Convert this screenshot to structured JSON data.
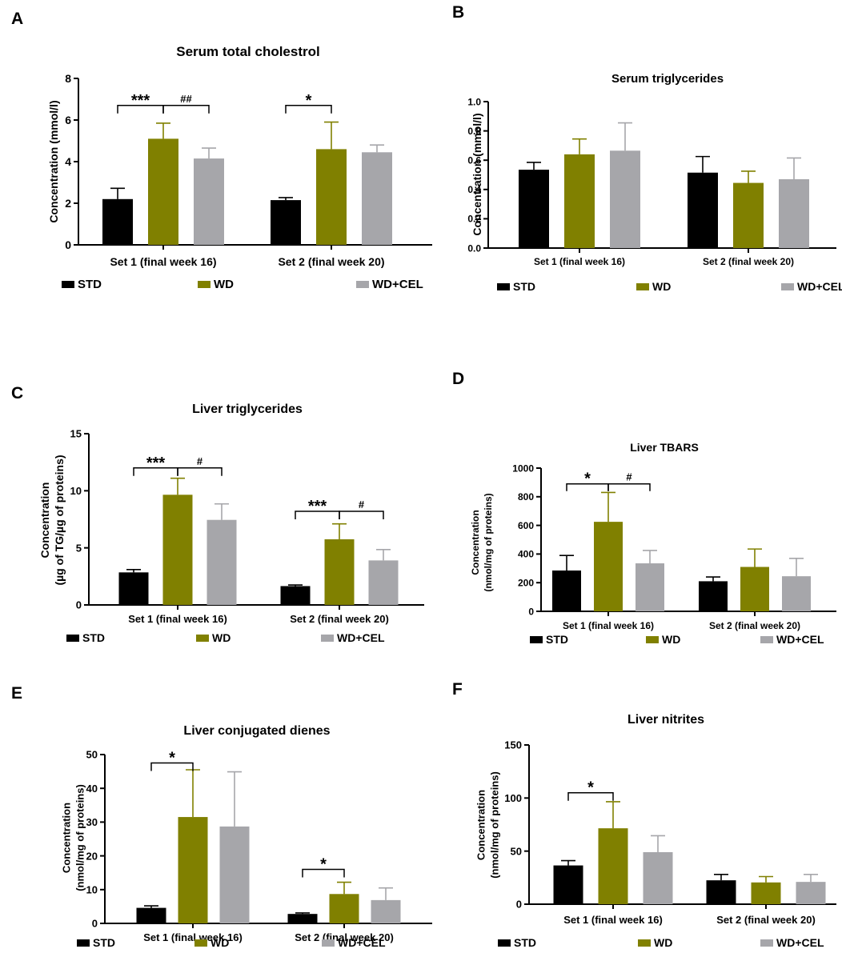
{
  "colors": {
    "STD": "#000000",
    "WD": "#808000",
    "WD+CEL": "#a6a6aa",
    "axis": "#000000"
  },
  "chart_data": [
    {
      "panel": "A",
      "type": "bar",
      "title": "Serum total cholestrol",
      "ylabel": [
        "Concentration (mmol/l)"
      ],
      "ylim": [
        0,
        8
      ],
      "yticks": [
        0,
        2,
        4,
        6,
        8
      ],
      "categories": [
        "Set 1 (final week 16)",
        "Set 2 (final week 20)"
      ],
      "series": [
        {
          "name": "STD",
          "values": [
            2.2,
            2.15
          ],
          "errors": [
            0.52,
            0.12
          ]
        },
        {
          "name": "WD",
          "values": [
            5.1,
            4.6
          ],
          "errors": [
            0.75,
            1.3
          ]
        },
        {
          "name": "WD+CEL",
          "values": [
            4.15,
            4.45
          ],
          "errors": [
            0.5,
            0.35
          ]
        }
      ],
      "annotations": [
        {
          "label": "***",
          "group": 0,
          "from": 0,
          "to": 1,
          "y": 6.7
        },
        {
          "label": "##",
          "group": 0,
          "from": 1,
          "to": 2,
          "y": 6.7
        },
        {
          "label": "*",
          "group": 1,
          "from": 0,
          "to": 1,
          "y": 6.7
        }
      ]
    },
    {
      "panel": "B",
      "type": "bar",
      "title": "Serum triglycerides",
      "ylabel": [
        "Concentration (mmol/l)"
      ],
      "ylim": [
        0,
        1.0
      ],
      "yticks": [
        "0.0",
        "0.2",
        "0.4",
        "0.6",
        "0.8",
        "1.0"
      ],
      "categories": [
        "Set 1 (final week 16)",
        "Set 2 (final week 20)"
      ],
      "series": [
        {
          "name": "STD",
          "values": [
            0.535,
            0.515
          ],
          "errors": [
            0.05,
            0.11
          ]
        },
        {
          "name": "WD",
          "values": [
            0.64,
            0.445
          ],
          "errors": [
            0.105,
            0.08
          ]
        },
        {
          "name": "WD+CEL",
          "values": [
            0.665,
            0.47
          ],
          "errors": [
            0.19,
            0.145
          ]
        }
      ],
      "annotations": []
    },
    {
      "panel": "C",
      "type": "bar",
      "title": "Liver triglycerides",
      "ylabel": [
        "Concentration",
        "(µg of TG/µg of proteins)"
      ],
      "ylim": [
        0,
        15
      ],
      "yticks": [
        0,
        5,
        10,
        15
      ],
      "categories": [
        "Set 1 (final week 16)",
        "Set 2 (final week 20)"
      ],
      "series": [
        {
          "name": "STD",
          "values": [
            2.85,
            1.65
          ],
          "errors": [
            0.25,
            0.1
          ]
        },
        {
          "name": "WD",
          "values": [
            9.65,
            5.75
          ],
          "errors": [
            1.45,
            1.35
          ]
        },
        {
          "name": "WD+CEL",
          "values": [
            7.45,
            3.9
          ],
          "errors": [
            1.4,
            0.95
          ]
        }
      ],
      "annotations": [
        {
          "label": "***",
          "group": 0,
          "from": 0,
          "to": 1,
          "y": 12.0
        },
        {
          "label": "#",
          "group": 0,
          "from": 1,
          "to": 2,
          "y": 12.0
        },
        {
          "label": "***",
          "group": 1,
          "from": 0,
          "to": 1,
          "y": 8.2
        },
        {
          "label": "#",
          "group": 1,
          "from": 1,
          "to": 2,
          "y": 8.2
        }
      ]
    },
    {
      "panel": "D",
      "type": "bar",
      "title": "Liver TBARS",
      "ylabel": [
        "Concentration",
        "(nmol/mg of proteins)"
      ],
      "ylim": [
        0,
        1000
      ],
      "yticks": [
        0,
        200,
        400,
        600,
        800,
        1000
      ],
      "categories": [
        "Set 1 (final week 16)",
        "Set 2 (final week 20)"
      ],
      "series": [
        {
          "name": "STD",
          "values": [
            285,
            210
          ],
          "errors": [
            105,
            30
          ]
        },
        {
          "name": "WD",
          "values": [
            625,
            310
          ],
          "errors": [
            205,
            125
          ]
        },
        {
          "name": "WD+CEL",
          "values": [
            335,
            245
          ],
          "errors": [
            90,
            125
          ]
        }
      ],
      "annotations": [
        {
          "label": "*",
          "group": 0,
          "from": 0,
          "to": 1,
          "y": 890
        },
        {
          "label": "#",
          "group": 0,
          "from": 1,
          "to": 2,
          "y": 890
        }
      ]
    },
    {
      "panel": "E",
      "type": "bar",
      "title": "Liver conjugated dienes",
      "ylabel": [
        "Concentration",
        "(nmol/mg of proteins)"
      ],
      "ylim": [
        0,
        50
      ],
      "yticks": [
        0,
        10,
        20,
        30,
        40,
        50
      ],
      "categories": [
        "Set 1 (final week 16)",
        "Set 2 (final week 20)"
      ],
      "series": [
        {
          "name": "STD",
          "values": [
            4.6,
            2.8
          ],
          "errors": [
            0.6,
            0.3
          ]
        },
        {
          "name": "WD",
          "values": [
            31.5,
            8.7
          ],
          "errors": [
            14.0,
            3.5
          ]
        },
        {
          "name": "WD+CEL",
          "values": [
            28.7,
            6.9
          ],
          "errors": [
            16.2,
            3.6
          ]
        }
      ],
      "annotations": [
        {
          "label": "*",
          "group": 0,
          "from": 0,
          "to": 1,
          "y": 47.5
        },
        {
          "label": "*",
          "group": 1,
          "from": 0,
          "to": 1,
          "y": 16.0
        }
      ]
    },
    {
      "panel": "F",
      "type": "bar",
      "title": "Liver nitrites",
      "ylabel": [
        "Concentration",
        "(nmol/mg of proteins)"
      ],
      "ylim": [
        0,
        150
      ],
      "yticks": [
        0,
        50,
        100,
        150
      ],
      "categories": [
        "Set 1 (final week 16)",
        "Set 2 (final week 20)"
      ],
      "series": [
        {
          "name": "STD",
          "values": [
            36.5,
            22.5
          ],
          "errors": [
            4.5,
            5.5
          ]
        },
        {
          "name": "WD",
          "values": [
            71.5,
            20.5
          ],
          "errors": [
            25.0,
            5.5
          ]
        },
        {
          "name": "WD+CEL",
          "values": [
            49.0,
            21.0
          ],
          "errors": [
            15.5,
            7.0
          ]
        }
      ],
      "annotations": [
        {
          "label": "*",
          "group": 0,
          "from": 0,
          "to": 1,
          "y": 105
        }
      ]
    }
  ]
}
